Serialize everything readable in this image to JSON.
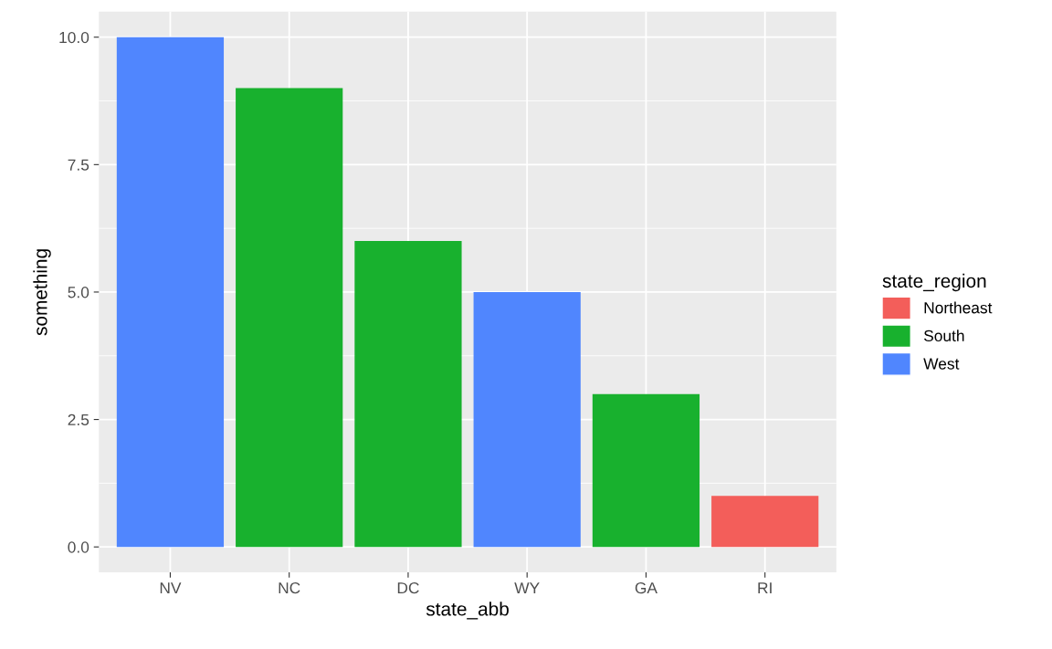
{
  "chart_data": {
    "type": "bar",
    "xlabel": "state_abb",
    "ylabel": "something",
    "legend_title": "state_region",
    "categories": [
      "NV",
      "NC",
      "DC",
      "WY",
      "GA",
      "RI"
    ],
    "series": [
      {
        "name": "Northeast",
        "color": "#f35e5a",
        "values": [
          null,
          null,
          null,
          null,
          null,
          1
        ]
      },
      {
        "name": "South",
        "color": "#18b12e",
        "values": [
          null,
          9,
          6,
          null,
          3,
          null
        ]
      },
      {
        "name": "West",
        "color": "#5086fe",
        "values": [
          10,
          null,
          null,
          5,
          null,
          null
        ]
      }
    ],
    "ylim": [
      -0.5,
      10.5
    ],
    "yticks": [
      {
        "value": 0,
        "label": "0.0"
      },
      {
        "value": 2.5,
        "label": "2.5"
      },
      {
        "value": 5,
        "label": "5.0"
      },
      {
        "value": 7.5,
        "label": "7.5"
      },
      {
        "value": 10,
        "label": "10.0"
      }
    ],
    "grid": true,
    "legend": "right"
  }
}
